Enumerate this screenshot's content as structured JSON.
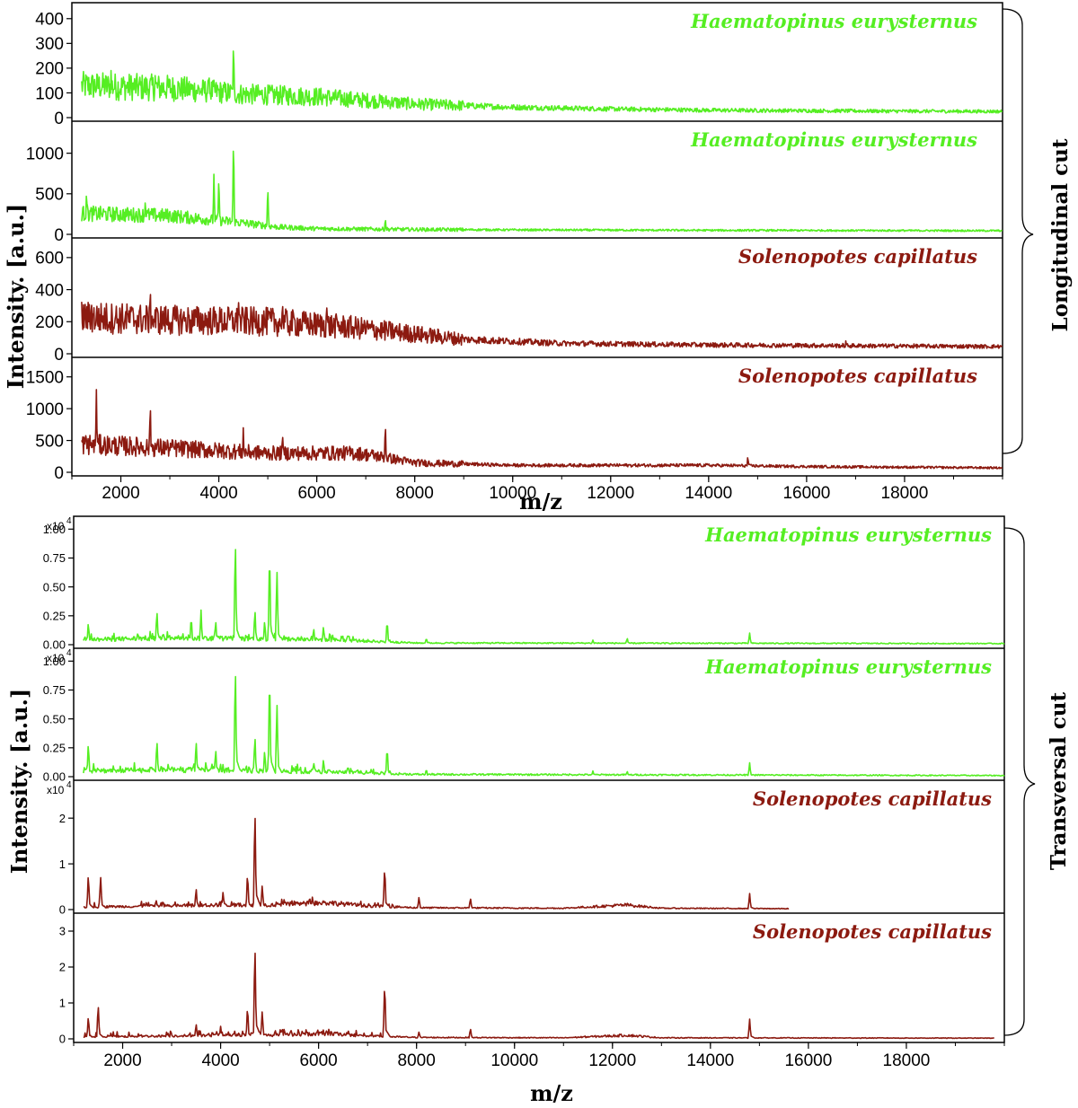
{
  "colors": {
    "haematopinus": "#55ee22",
    "solenopotes": "#8c1a10",
    "axis": "#000000"
  },
  "blocks": [
    {
      "group_label": "Longitudinal cut",
      "ylabel": "Intensity. [a.u.]",
      "xlabel": "m/z",
      "x_ticks": [
        "2000",
        "4000",
        "6000",
        "8000",
        "10000",
        "12000",
        "14000",
        "16000",
        "18000"
      ],
      "panels": [
        {
          "label": "Haematopinus eurysternus",
          "y_ticks": [
            "0",
            "100",
            "200",
            "300",
            "400"
          ]
        },
        {
          "label": "Haematopinus eurysternus",
          "y_ticks": [
            "0",
            "500",
            "1000"
          ]
        },
        {
          "label": "Solenopotes capillatus",
          "y_ticks": [
            "0",
            "200",
            "400",
            "600"
          ]
        },
        {
          "label": "Solenopotes capillatus",
          "y_ticks": [
            "0",
            "500",
            "1000",
            "1500"
          ]
        }
      ]
    },
    {
      "group_label": "Transversal cut",
      "ylabel": "Intensity. [a.u.]",
      "xlabel": "m/z",
      "x_ticks": [
        "2000",
        "4000",
        "6000",
        "8000",
        "10000",
        "12000",
        "14000",
        "16000",
        "18000"
      ],
      "panels": [
        {
          "label": "Haematopinus eurysternus",
          "exponent": "x10",
          "exponent_power": "4",
          "y_ticks": [
            "0.00",
            "0.25",
            "0.50",
            "0.75",
            "1.00"
          ]
        },
        {
          "label": "Haematopinus eurysternus",
          "exponent": "x10",
          "exponent_power": "4",
          "y_ticks": [
            "0.00",
            "0.25",
            "0.50",
            "0.75",
            "1.00"
          ]
        },
        {
          "label": "Solenopotes capillatus",
          "exponent": "x10",
          "exponent_power": "4",
          "y_ticks": [
            "0",
            "1",
            "2"
          ]
        },
        {
          "label": "Solenopotes capillatus",
          "y_ticks": [
            "0",
            "1",
            "2",
            "3"
          ]
        }
      ]
    }
  ],
  "chart_data": [
    {
      "type": "line",
      "block": "Longitudinal cut",
      "xlabel": "m/z",
      "ylabel": "Intensity. [a.u.]",
      "series": [
        {
          "name": "Haematopinus eurysternus",
          "color": "#55ee22",
          "ylim": [
            0,
            450
          ],
          "baseline": [
            [
              1000,
              130
            ],
            [
              3000,
              120
            ],
            [
              4500,
              95
            ],
            [
              6000,
              85
            ],
            [
              8000,
              55
            ],
            [
              10000,
              42
            ],
            [
              12000,
              35
            ],
            [
              14000,
              30
            ],
            [
              16000,
              28
            ],
            [
              18000,
              26
            ],
            [
              20000,
              25
            ]
          ],
          "peaks": [
            [
              4300,
              320
            ],
            [
              1300,
              170
            ],
            [
              1800,
              190
            ],
            [
              3800,
              190
            ],
            [
              2700,
              170
            ]
          ]
        },
        {
          "name": "Haematopinus eurysternus",
          "color": "#55ee22",
          "ylim": [
            0,
            1350
          ],
          "baseline": [
            [
              1000,
              260
            ],
            [
              3000,
              230
            ],
            [
              4500,
              140
            ],
            [
              5200,
              90
            ],
            [
              6000,
              70
            ],
            [
              8000,
              60
            ],
            [
              10000,
              55
            ],
            [
              14000,
              50
            ],
            [
              20000,
              45
            ]
          ],
          "peaks": [
            [
              4300,
              1220
            ],
            [
              3900,
              740
            ],
            [
              4000,
              740
            ],
            [
              5000,
              610
            ],
            [
              1300,
              560
            ],
            [
              2500,
              460
            ],
            [
              7400,
              200
            ]
          ]
        },
        {
          "name": "Solenopotes capillatus",
          "color": "#8c1a10",
          "ylim": [
            0,
            700
          ],
          "baseline": [
            [
              1000,
              230
            ],
            [
              3000,
              210
            ],
            [
              5000,
              200
            ],
            [
              6500,
              170
            ],
            [
              7500,
              140
            ],
            [
              9000,
              90
            ],
            [
              11000,
              65
            ],
            [
              14000,
              55
            ],
            [
              17000,
              50
            ],
            [
              20000,
              45
            ]
          ],
          "peaks": [
            [
              2600,
              440
            ],
            [
              1400,
              360
            ],
            [
              4400,
              380
            ],
            [
              5300,
              350
            ],
            [
              6200,
              340
            ],
            [
              16800,
              80
            ]
          ]
        },
        {
          "name": "Solenopotes capillatus",
          "color": "#8c1a10",
          "ylim": [
            0,
            1750
          ],
          "baseline": [
            [
              1000,
              450
            ],
            [
              3000,
              380
            ],
            [
              5000,
              300
            ],
            [
              6800,
              300
            ],
            [
              7200,
              260
            ],
            [
              8000,
              150
            ],
            [
              10000,
              110
            ],
            [
              12000,
              110
            ],
            [
              14000,
              110
            ],
            [
              16000,
              90
            ],
            [
              20000,
              70
            ]
          ],
          "peaks": [
            [
              1500,
              1300
            ],
            [
              2600,
              1150
            ],
            [
              7400,
              800
            ],
            [
              4500,
              700
            ],
            [
              5300,
              650
            ],
            [
              14800,
              270
            ],
            [
              6100,
              400
            ]
          ]
        }
      ]
    },
    {
      "type": "line",
      "block": "Transversal cut",
      "xlabel": "m/z",
      "ylabel": "Intensity. [a.u.]",
      "series": [
        {
          "name": "Haematopinus eurysternus",
          "color": "#55ee22",
          "ylim": [
            0,
            1.08
          ],
          "baseline": [
            [
              1000,
              0.04
            ],
            [
              3000,
              0.06
            ],
            [
              5000,
              0.05
            ],
            [
              6500,
              0.04
            ],
            [
              8000,
              0.015
            ],
            [
              20000,
              0.01
            ]
          ],
          "peaks": [
            [
              4300,
              0.95
            ],
            [
              5000,
              0.87
            ],
            [
              5150,
              0.67
            ],
            [
              4700,
              0.32
            ],
            [
              2700,
              0.31
            ],
            [
              3600,
              0.3
            ],
            [
              3400,
              0.26
            ],
            [
              4900,
              0.22
            ],
            [
              1300,
              0.2
            ],
            [
              3900,
              0.22
            ],
            [
              6100,
              0.17
            ],
            [
              5900,
              0.15
            ],
            [
              7400,
              0.22
            ],
            [
              6600,
              0.1
            ],
            [
              8200,
              0.06
            ],
            [
              12300,
              0.06
            ],
            [
              11600,
              0.04
            ],
            [
              14800,
              0.1
            ]
          ]
        },
        {
          "name": "Haematopinus eurysternus",
          "color": "#55ee22",
          "ylim": [
            0,
            1.08
          ],
          "baseline": [
            [
              1000,
              0.05
            ],
            [
              3000,
              0.06
            ],
            [
              5000,
              0.05
            ],
            [
              6500,
              0.04
            ],
            [
              8000,
              0.02
            ],
            [
              20000,
              0.01
            ]
          ],
          "peaks": [
            [
              4300,
              1.0
            ],
            [
              5000,
              0.96
            ],
            [
              5150,
              0.66
            ],
            [
              4700,
              0.37
            ],
            [
              2700,
              0.33
            ],
            [
              3500,
              0.33
            ],
            [
              3900,
              0.25
            ],
            [
              1300,
              0.3
            ],
            [
              4900,
              0.24
            ],
            [
              6100,
              0.16
            ],
            [
              5900,
              0.13
            ],
            [
              7400,
              0.27
            ],
            [
              6600,
              0.1
            ],
            [
              8200,
              0.07
            ],
            [
              11600,
              0.05
            ],
            [
              12300,
              0.05
            ],
            [
              14800,
              0.12
            ]
          ]
        },
        {
          "name": "Solenopotes capillatus",
          "color": "#8c1a10",
          "ylim": [
            0,
            2.75
          ],
          "baseline": [
            [
              1000,
              0.05
            ],
            [
              4000,
              0.1
            ],
            [
              5000,
              0.1
            ],
            [
              6200,
              0.15
            ],
            [
              7000,
              0.08
            ],
            [
              8000,
              0.04
            ],
            [
              11000,
              0.03
            ],
            [
              12300,
              0.1
            ],
            [
              13000,
              0.03
            ],
            [
              15600,
              0.02
            ]
          ],
          "peaks": [
            [
              4700,
              2.3
            ],
            [
              7350,
              1.0
            ],
            [
              4550,
              0.85
            ],
            [
              1300,
              0.8
            ],
            [
              1550,
              0.75
            ],
            [
              4850,
              0.55
            ],
            [
              3500,
              0.5
            ],
            [
              4050,
              0.4
            ],
            [
              8050,
              0.28
            ],
            [
              9100,
              0.26
            ],
            [
              14800,
              0.35
            ],
            [
              5300,
              0.25
            ]
          ]
        },
        {
          "name": "Solenopotes capillatus",
          "color": "#8c1a10",
          "ylim": [
            0,
            3.4
          ],
          "baseline": [
            [
              1000,
              0.05
            ],
            [
              4000,
              0.1
            ],
            [
              5000,
              0.1
            ],
            [
              6200,
              0.15
            ],
            [
              7000,
              0.08
            ],
            [
              8000,
              0.04
            ],
            [
              11000,
              0.03
            ],
            [
              12300,
              0.1
            ],
            [
              13000,
              0.03
            ],
            [
              20000,
              0.02
            ]
          ],
          "peaks": [
            [
              4700,
              2.75
            ],
            [
              7350,
              1.65
            ],
            [
              4550,
              0.95
            ],
            [
              1500,
              1.0
            ],
            [
              1300,
              0.65
            ],
            [
              4850,
              0.8
            ],
            [
              3500,
              0.45
            ],
            [
              4000,
              0.35
            ],
            [
              8050,
              0.2
            ],
            [
              9100,
              0.3
            ],
            [
              14800,
              0.55
            ],
            [
              5300,
              0.3
            ]
          ]
        }
      ]
    }
  ]
}
